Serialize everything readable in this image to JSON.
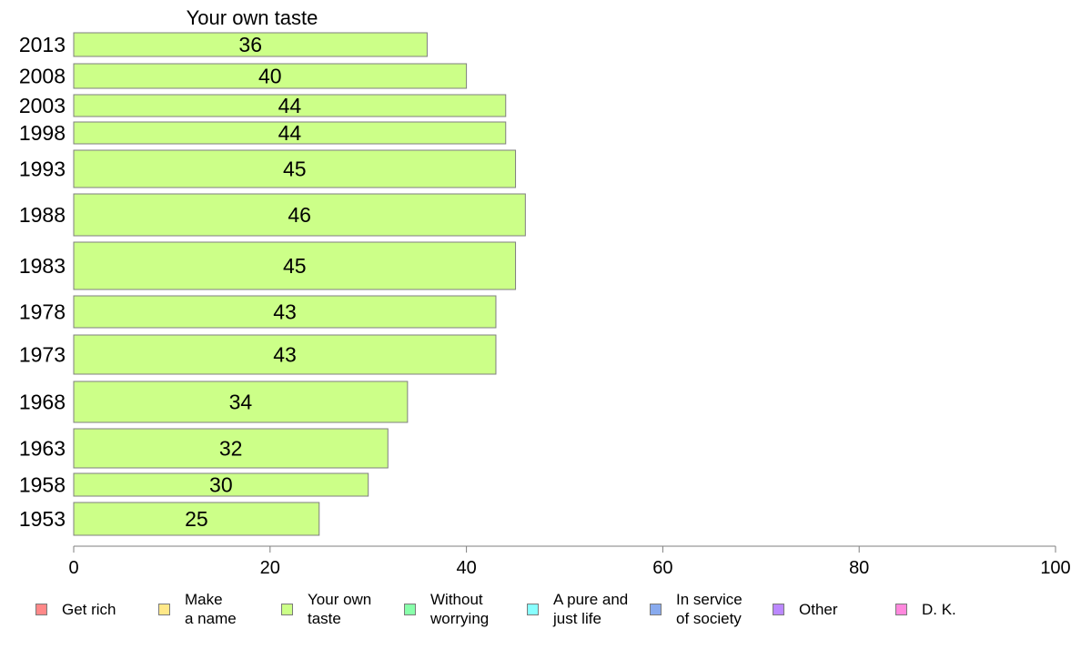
{
  "chart_data": {
    "type": "bar",
    "orientation": "horizontal",
    "title": "Your own taste",
    "categories": [
      "2013",
      "2008",
      "2003",
      "1998",
      "1993",
      "1988",
      "1983",
      "1978",
      "1973",
      "1968",
      "1963",
      "1958",
      "1953"
    ],
    "series": [
      {
        "name": "Your own taste",
        "values": [
          36,
          40,
          44,
          44,
          45,
          46,
          45,
          43,
          43,
          34,
          32,
          30,
          25
        ],
        "color": "#ccff88"
      }
    ],
    "data_labels": [
      "36",
      "40",
      "44",
      "44",
      "45",
      "46",
      "45",
      "43",
      "43",
      "34",
      "32",
      "30",
      "25"
    ],
    "xlim": [
      0,
      100
    ],
    "x_ticks": [
      "0",
      "20",
      "40",
      "60",
      "80",
      "100"
    ],
    "grid": false,
    "legend_position": "bottom",
    "legend": [
      {
        "label": "Get rich",
        "color": "#ff8888"
      },
      {
        "label": "Make\na name",
        "color": "#ffe888"
      },
      {
        "label": "Your own\ntaste",
        "color": "#ccff88"
      },
      {
        "label": "Without\nworrying",
        "color": "#88ffaa"
      },
      {
        "label": "A pure and\njust life",
        "color": "#88ffff"
      },
      {
        "label": "In service\nof society",
        "color": "#88aaee"
      },
      {
        "label": "Other",
        "color": "#bb88ff"
      },
      {
        "label": "D. K.",
        "color": "#ff88dd"
      }
    ]
  }
}
